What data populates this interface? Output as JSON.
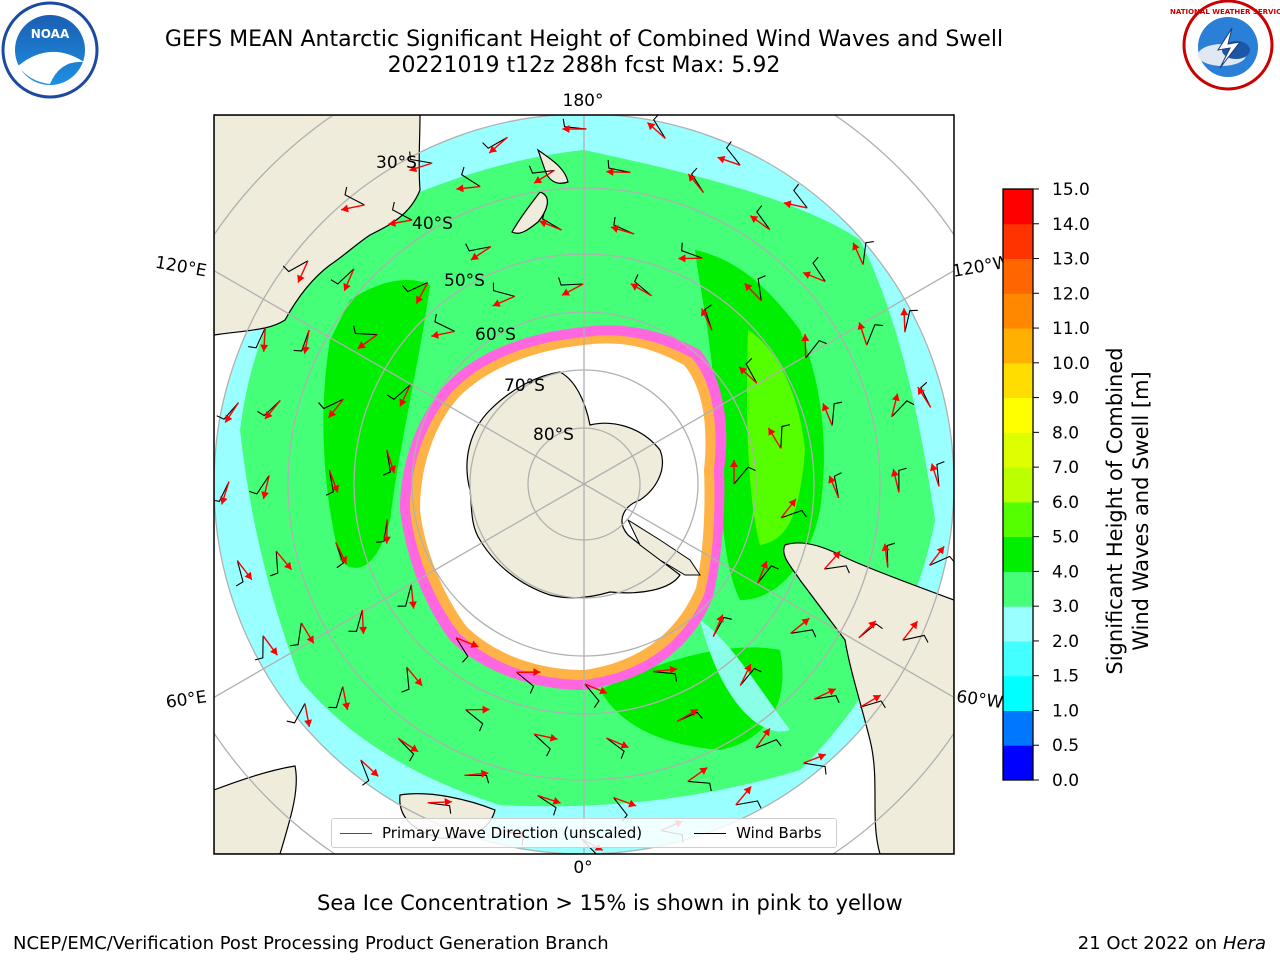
{
  "title_line1": "GEFS MEAN Antarctic Significant Height of Combined Wind Waves and Swell",
  "title_line2": "20221019 t12z 288h fcst   Max: 5.92",
  "map": {
    "longitude_labels": [
      "180°",
      "120°E",
      "120°W",
      "60°E",
      "60°W",
      "0°"
    ],
    "latitude_labels": [
      "30°S",
      "40°S",
      "50°S",
      "60°S",
      "70°S",
      "80°S"
    ],
    "colors": {
      "land": "#efecdc",
      "sea_ice": "#ffffff",
      "ice_edge_pink": "#ff66e0",
      "ice_edge_orange": "#ffb347",
      "wave_arrow": "#ff0000",
      "wind_barb": "#000000",
      "grid": "#b0b0b0"
    }
  },
  "legend": {
    "primary_wave_label": "Primary Wave Direction (unscaled)",
    "wind_barbs_label": "Wind Barbs"
  },
  "colorbar": {
    "label_line1": "Significant Height of Combined",
    "label_line2": "Wind Waves and Swell [m]",
    "ticks": [
      "0.0",
      "0.5",
      "1.0",
      "1.5",
      "2.0",
      "3.0",
      "4.0",
      "5.0",
      "6.0",
      "7.0",
      "8.0",
      "9.0",
      "10.0",
      "11.0",
      "12.0",
      "13.0",
      "14.0",
      "15.0"
    ],
    "colors": [
      "#0000ff",
      "#0077ff",
      "#00ffff",
      "#44ffff",
      "#99ffff",
      "#44ff77",
      "#00ee00",
      "#55ff00",
      "#bbff00",
      "#ddff00",
      "#ffff00",
      "#ffdd00",
      "#ffb000",
      "#ff8800",
      "#ff6600",
      "#ff3300",
      "#ff0000"
    ]
  },
  "note": "Sea Ice Concentration > 15% is shown in pink to yellow",
  "footer_left": "NCEP/EMC/Verification Post Processing Product Generation Branch",
  "footer_right_date": "21 Oct 2022 on ",
  "footer_right_host": "Hera",
  "logos": {
    "left_text": "NOAA",
    "right_text": "NATIONAL WEATHER SERVICE"
  }
}
